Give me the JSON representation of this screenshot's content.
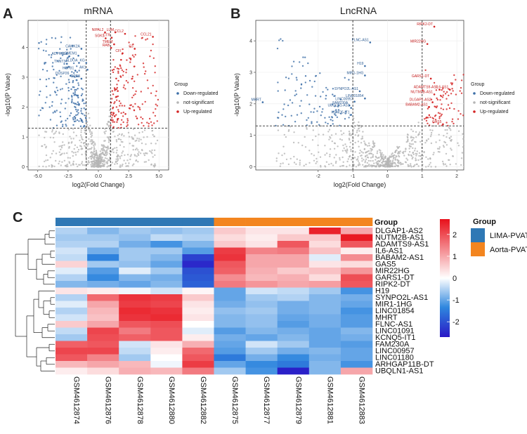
{
  "panels": {
    "A": "A",
    "B": "B",
    "C": "C"
  },
  "chart_data": [
    {
      "type": "scatter",
      "title": "mRNA",
      "xlabel": "log2(Fold Change)",
      "ylabel": "-log10(P Value)",
      "xlim": [
        -5.8,
        5.8
      ],
      "ylim": [
        -0.1,
        4.9
      ],
      "xticks": [
        "-5.0",
        "-2.5",
        "0.0",
        "2.5",
        "5.0"
      ],
      "xtick_values": [
        -5,
        -2.5,
        0,
        2.5,
        5
      ],
      "yticks": [
        "0",
        "1",
        "2",
        "3",
        "4"
      ],
      "ytick_values": [
        0,
        1,
        2,
        3,
        4
      ],
      "thresholds": {
        "x": [
          -1,
          1
        ],
        "y": 1.3
      },
      "legend": {
        "title": "Group",
        "items": [
          {
            "label": "Down-regulated",
            "color": "#3d6fa8"
          },
          {
            "label": "not-significant",
            "color": "#b5b5b5"
          },
          {
            "label": "Up-regulated",
            "color": "#d42424"
          }
        ]
      },
      "labels_up": [
        {
          "name": "NIPAL2",
          "x": 0.55,
          "y": 4.5
        },
        {
          "name": "LUM",
          "x": 1.4,
          "y": 4.5
        },
        {
          "name": "CCL2",
          "x": 2.2,
          "y": 4.45
        },
        {
          "name": "SGK1",
          "x": 0.6,
          "y": 4.3
        },
        {
          "name": "CTR",
          "x": 1.1,
          "y": 4.32
        },
        {
          "name": "CCL21",
          "x": 4.5,
          "y": 4.35
        },
        {
          "name": "TMEM",
          "x": 1.3,
          "y": 4.1
        },
        {
          "name": "RAB",
          "x": 1.05,
          "y": 3.98
        },
        {
          "name": "C3",
          "x": 3.0,
          "y": 3.95
        },
        {
          "name": "CFI",
          "x": 2.0,
          "y": 3.8
        }
      ],
      "labels_down": [
        {
          "name": "CAMK2A",
          "x": -1.4,
          "y": 3.95
        },
        {
          "name": "ADPRHL1",
          "x": -2.4,
          "y": 3.7
        },
        {
          "name": "LSMEM1",
          "x": -1.65,
          "y": 3.72
        },
        {
          "name": "TNNT3",
          "x": -2.6,
          "y": 3.45
        },
        {
          "name": "ALDOA",
          "x": -1.6,
          "y": 3.48
        },
        {
          "name": "KG",
          "x": -1.0,
          "y": 3.48
        },
        {
          "name": "HSPB1",
          "x": -1.9,
          "y": 3.22
        },
        {
          "name": "AK1",
          "x": -0.9,
          "y": 3.25
        },
        {
          "name": "DUSP26",
          "x": -2.3,
          "y": 3.05
        },
        {
          "name": "DPE3",
          "x": -1.4,
          "y": 2.95
        }
      ]
    },
    {
      "type": "scatter",
      "title": "LncRNA",
      "xlabel": "log2(Fold Change)",
      "ylabel": "-log10(P Value)",
      "xlim": [
        -3.8,
        2.2
      ],
      "ylim": [
        -0.1,
        4.65
      ],
      "xticks": [
        "-2",
        "-1",
        "0",
        "1",
        "2"
      ],
      "xtick_values": [
        -2,
        -1,
        0,
        1,
        2
      ],
      "yticks": [
        "0",
        "1",
        "2",
        "3",
        "4"
      ],
      "ytick_values": [
        0,
        1,
        2,
        3,
        4
      ],
      "thresholds": {
        "x": [
          -1,
          1
        ],
        "y": 1.3
      },
      "legend": {
        "title": "Group",
        "items": [
          {
            "label": "Down-regulated",
            "color": "#3d6fa8"
          },
          {
            "label": "not-significant",
            "color": "#b5b5b5"
          },
          {
            "label": "Up-regulated",
            "color": "#d42424"
          }
        ]
      },
      "labels_up": [
        {
          "name": "RIPK2-DT",
          "x": 1.35,
          "y": 4.45
        },
        {
          "name": "MIR22HG",
          "x": 1.15,
          "y": 3.9
        },
        {
          "name": "GARS1-DT",
          "x": 1.25,
          "y": 2.8
        },
        {
          "name": "ADAMTS9-AS1",
          "x": 1.5,
          "y": 2.45
        },
        {
          "name": "IL6-AS1",
          "x": 1.8,
          "y": 2.45
        },
        {
          "name": "NUTM2B-AS1",
          "x": 1.35,
          "y": 2.3
        },
        {
          "name": "DLGAP1-AS2",
          "x": 1.3,
          "y": 2.05
        },
        {
          "name": "BABAM2-AS1",
          "x": 1.2,
          "y": 1.9
        },
        {
          "name": "GAS5",
          "x": 1.6,
          "y": 1.35
        }
      ],
      "labels_down": [
        {
          "name": "FLNC-AS1",
          "x": -0.5,
          "y": 3.95
        },
        {
          "name": "H19",
          "x": -0.65,
          "y": 3.2
        },
        {
          "name": "MIR1-1HG",
          "x": -0.65,
          "y": 2.9
        },
        {
          "name": "SYNPO2L-AS1",
          "x": -0.8,
          "y": 2.4
        },
        {
          "name": "MHRT",
          "x": -3.6,
          "y": 2.05
        },
        {
          "name": "LINC01854",
          "x": -0.65,
          "y": 2.17
        },
        {
          "name": "LINC00957",
          "x": -0.95,
          "y": 2.07
        },
        {
          "name": "FAM230A",
          "x": -1.1,
          "y": 1.95
        },
        {
          "name": "UBQLN1-AS1",
          "x": -1.05,
          "y": 1.87
        },
        {
          "name": "KCNQ5-IT1",
          "x": -1.05,
          "y": 1.65
        }
      ]
    },
    {
      "type": "heatmap",
      "group_header": "Group",
      "columns": [
        "GSM4612874",
        "GSM4612876",
        "GSM4612878",
        "GSM4612880",
        "GSM4612882",
        "GSM4612875",
        "GSM4612877",
        "GSM4612879",
        "GSM4612881",
        "GSM4612883"
      ],
      "column_groups": [
        "LIMA-PVAT",
        "LIMA-PVAT",
        "LIMA-PVAT",
        "LIMA-PVAT",
        "LIMA-PVAT",
        "Aorta-PVAT",
        "Aorta-PVAT",
        "Aorta-PVAT",
        "Aorta-PVAT",
        "Aorta-PVAT"
      ],
      "rows": [
        "DLGAP1-AS2",
        "NUTM2B-AS1",
        "ADAMTS9-AS1",
        "IL6-AS1",
        "BABAM2-AS1",
        "GAS5",
        "MIR22HG",
        "GARS1-DT",
        "RIPK2-DT",
        "H19",
        "SYNPO2L-AS1",
        "MIR1-1HG",
        "LINC01854",
        "MHRT",
        "FLNC-AS1",
        "LINC01091",
        "KCNQ5-IT1",
        "FAM230A",
        "LINC00957",
        "LINC01180",
        "ARHGAP11B-DT",
        "UBQLN1-AS1"
      ],
      "values": [
        [
          -0.5,
          -0.8,
          -0.6,
          -0.7,
          -0.6,
          0.6,
          0.3,
          0.3,
          2.5,
          1.0
        ],
        [
          -0.6,
          -0.6,
          -0.7,
          -0.4,
          -0.5,
          0.4,
          0.2,
          0.6,
          0.6,
          2.6
        ],
        [
          -0.5,
          -0.5,
          -0.9,
          -1.2,
          -0.8,
          0.6,
          0.3,
          1.9,
          0.4,
          1.9
        ],
        [
          -0.3,
          -0.9,
          -0.6,
          -0.6,
          -1.1,
          2.2,
          1.4,
          1.5,
          0.7,
          0.2
        ],
        [
          -0.4,
          -1.4,
          -0.6,
          -0.8,
          -2.2,
          2.3,
          1.0,
          1.0,
          -0.2,
          1.3
        ],
        [
          0.5,
          -0.6,
          -0.7,
          -1.0,
          -2.5,
          1.9,
          1.0,
          1.0,
          0.3,
          0.4
        ],
        [
          -0.2,
          -1.1,
          -0.2,
          -0.6,
          -2.0,
          1.8,
          0.9,
          0.6,
          0.7,
          1.2
        ],
        [
          -0.5,
          -1.3,
          -0.8,
          -0.9,
          -1.9,
          1.3,
          0.8,
          0.9,
          0.4,
          2.0
        ],
        [
          -0.8,
          -0.9,
          -1.0,
          -0.8,
          -1.8,
          1.5,
          1.2,
          1.0,
          1.1,
          1.9
        ],
        [
          0.3,
          0.2,
          -0.1,
          -0.3,
          0.1,
          -1.0,
          -0.3,
          -0.4,
          -0.6,
          -1.2
        ],
        [
          -0.5,
          1.7,
          2.3,
          2.2,
          0.6,
          -1.0,
          -0.6,
          -0.5,
          -0.8,
          -0.9
        ],
        [
          -0.2,
          1.0,
          2.2,
          2.1,
          0.3,
          -0.9,
          -0.7,
          -0.9,
          -0.8,
          -1.0
        ],
        [
          -0.5,
          0.8,
          2.4,
          2.3,
          0.2,
          -0.7,
          -0.6,
          -0.9,
          -0.8,
          -1.2
        ],
        [
          -0.3,
          0.7,
          2.3,
          2.4,
          0.3,
          -0.8,
          -0.7,
          -1.0,
          -0.9,
          -1.1
        ],
        [
          0.6,
          1.0,
          1.9,
          2.0,
          0.0,
          -0.8,
          -0.7,
          -1.1,
          -0.9,
          -1.1
        ],
        [
          -0.4,
          2.1,
          1.5,
          1.9,
          -0.2,
          -1.1,
          -0.8,
          -0.9,
          -1.0,
          -0.8
        ],
        [
          -0.6,
          2.0,
          1.8,
          1.9,
          0.2,
          -0.9,
          -1.0,
          -0.8,
          -1.0,
          -0.9
        ],
        [
          1.8,
          1.9,
          -0.3,
          0.3,
          0.9,
          -1.0,
          -0.3,
          -0.6,
          -1.0,
          -1.1
        ],
        [
          2.1,
          2.1,
          -0.4,
          0.2,
          1.7,
          -1.1,
          -0.6,
          -0.9,
          -0.8,
          -1.0
        ],
        [
          1.9,
          1.4,
          -0.6,
          0.0,
          1.9,
          -1.5,
          -0.9,
          -1.3,
          -0.9,
          -1.0
        ],
        [
          0.8,
          1.0,
          0.8,
          -0.1,
          2.2,
          -1.0,
          -1.3,
          -1.5,
          -0.8,
          -1.2
        ],
        [
          0.2,
          0.4,
          0.9,
          0.8,
          1.5,
          -0.6,
          -1.2,
          -2.6,
          -0.8,
          1.0
        ]
      ],
      "color_scale": {
        "min": -2.7,
        "max": 2.7,
        "ticks": [
          "2",
          "1",
          "0",
          "-1",
          "-2"
        ],
        "tick_values": [
          2,
          1,
          0,
          -1,
          -2
        ]
      },
      "group_legend": {
        "title": "Group",
        "items": [
          {
            "label": "LIMA-PVAT",
            "color": "#2f78b5"
          },
          {
            "label": "Aorta-PVAT",
            "color": "#f3851f"
          }
        ]
      }
    }
  ]
}
